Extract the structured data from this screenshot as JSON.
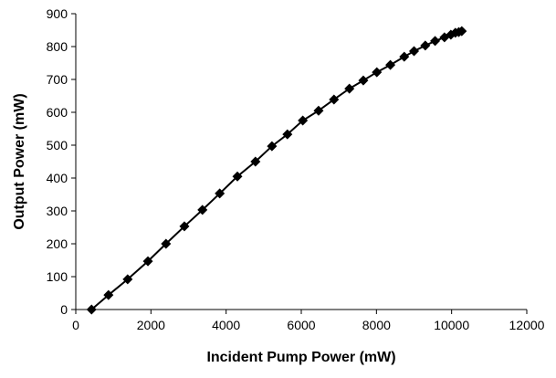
{
  "chart_data": {
    "type": "line",
    "x_label": "Incident Pump Power (mW)",
    "y_label": "Output Power (mW)",
    "x": [
      420,
      870,
      1380,
      1920,
      2400,
      2890,
      3370,
      3830,
      4300,
      4780,
      5220,
      5630,
      6040,
      6460,
      6870,
      7280,
      7650,
      8010,
      8370,
      8740,
      9000,
      9300,
      9560,
      9810,
      9980,
      10100,
      10190,
      10270
    ],
    "series": [
      {
        "color": "#000000",
        "marker": "diamond",
        "values": [
          0,
          44,
          92,
          147,
          200,
          253,
          303,
          353,
          405,
          450,
          497,
          533,
          575,
          605,
          639,
          672,
          697,
          722,
          744,
          769,
          786,
          803,
          817,
          828,
          836,
          842,
          844,
          847
        ]
      }
    ],
    "xlim": [
      0,
      12000
    ],
    "xticks": [
      0,
      2000,
      4000,
      6000,
      8000,
      10000,
      12000
    ],
    "ylim": [
      0,
      900
    ],
    "yticks": [
      0,
      100,
      200,
      300,
      400,
      500,
      600,
      700,
      800,
      900
    ],
    "grid": false
  }
}
